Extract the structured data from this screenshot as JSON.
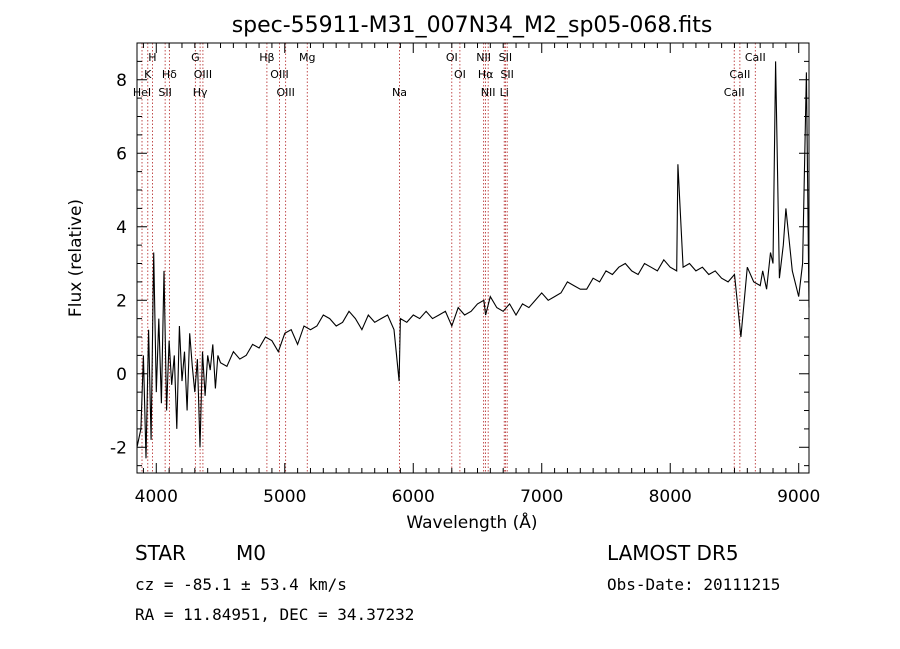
{
  "chart_data": {
    "type": "line",
    "title": "spec-55911-M31_007N34_M2_sp05-068.fits",
    "xlabel": "Wavelength (Å)",
    "ylabel": "Flux (relative)",
    "xlim": [
      3850,
      9080
    ],
    "ylim": [
      -2.7,
      9.0
    ],
    "x_ticks": [
      4000,
      5000,
      6000,
      7000,
      8000,
      9000
    ],
    "y_ticks": [
      -2,
      0,
      2,
      4,
      6,
      8
    ],
    "line_color": "#000000",
    "marker_line_color": "#b22222",
    "series": [
      {
        "x": [
          3850,
          3880,
          3900,
          3920,
          3940,
          3960,
          3980,
          4000,
          4020,
          4040,
          4060,
          4080,
          4100,
          4120,
          4140,
          4160,
          4180,
          4200,
          4220,
          4240,
          4260,
          4280,
          4300,
          4320,
          4340,
          4360,
          4380,
          4400,
          4420,
          4440,
          4460,
          4480,
          4500,
          4550,
          4600,
          4650,
          4700,
          4750,
          4800,
          4850,
          4900,
          4950,
          5000,
          5050,
          5100,
          5150,
          5200,
          5250,
          5300,
          5350,
          5400,
          5450,
          5500,
          5550,
          5600,
          5650,
          5700,
          5750,
          5800,
          5850,
          5890,
          5900,
          5950,
          6000,
          6050,
          6100,
          6150,
          6200,
          6250,
          6300,
          6350,
          6400,
          6450,
          6500,
          6550,
          6563,
          6600,
          6650,
          6700,
          6750,
          6800,
          6850,
          6900,
          6950,
          7000,
          7050,
          7100,
          7150,
          7200,
          7250,
          7300,
          7350,
          7400,
          7450,
          7500,
          7550,
          7600,
          7650,
          7700,
          7750,
          7800,
          7850,
          7900,
          7950,
          8000,
          8050,
          8060,
          8100,
          8150,
          8200,
          8250,
          8300,
          8350,
          8400,
          8450,
          8500,
          8550,
          8600,
          8650,
          8700,
          8720,
          8750,
          8780,
          8800,
          8820,
          8850,
          8880,
          8900,
          8950,
          9000,
          9030,
          9060,
          9080
        ],
        "y": [
          -2.0,
          -1.5,
          0.5,
          -2.3,
          1.2,
          -1.8,
          3.3,
          -0.5,
          1.5,
          -0.8,
          2.8,
          -1.0,
          0.9,
          -0.3,
          0.5,
          -1.5,
          1.3,
          -0.2,
          0.6,
          -1.0,
          1.1,
          0.2,
          -0.5,
          0.4,
          -2.0,
          0.6,
          -0.6,
          0.5,
          0.1,
          0.8,
          -0.4,
          0.5,
          0.3,
          0.2,
          0.6,
          0.4,
          0.5,
          0.8,
          0.7,
          1.0,
          0.9,
          0.6,
          1.1,
          1.2,
          0.8,
          1.3,
          1.2,
          1.3,
          1.6,
          1.5,
          1.3,
          1.4,
          1.7,
          1.5,
          1.2,
          1.6,
          1.4,
          1.5,
          1.6,
          1.2,
          -0.2,
          1.5,
          1.4,
          1.6,
          1.5,
          1.7,
          1.5,
          1.6,
          1.7,
          1.3,
          1.8,
          1.6,
          1.7,
          1.9,
          2.0,
          1.6,
          2.1,
          1.8,
          1.7,
          1.9,
          1.6,
          1.9,
          1.8,
          2.0,
          2.2,
          2.0,
          2.1,
          2.2,
          2.5,
          2.4,
          2.3,
          2.3,
          2.6,
          2.5,
          2.8,
          2.7,
          2.9,
          3.0,
          2.8,
          2.7,
          3.0,
          2.9,
          2.8,
          3.1,
          2.9,
          2.8,
          5.7,
          2.9,
          3.0,
          2.8,
          2.9,
          2.7,
          2.8,
          2.6,
          2.5,
          2.7,
          1.0,
          2.9,
          2.5,
          2.4,
          2.8,
          2.3,
          3.3,
          3.0,
          8.5,
          2.6,
          3.5,
          4.5,
          2.8,
          2.1,
          3.0,
          8.2,
          1.8
        ]
      }
    ],
    "spectral_lines": [
      {
        "name": "H",
        "x": 3970,
        "row": 0
      },
      {
        "name": "K",
        "x": 3934,
        "row": 1
      },
      {
        "name": "HeI",
        "x": 3889,
        "row": 2
      },
      {
        "name": "Hδ",
        "x": 4102,
        "row": 1
      },
      {
        "name": "SII",
        "x": 4069,
        "row": 2
      },
      {
        "name": "G",
        "x": 4304,
        "row": 0
      },
      {
        "name": "OIII",
        "x": 4363,
        "row": 1
      },
      {
        "name": "Hγ",
        "x": 4341,
        "row": 2
      },
      {
        "name": "Hβ",
        "x": 4861,
        "row": 0
      },
      {
        "name": "OIII",
        "x": 4959,
        "row": 1
      },
      {
        "name": "OIII",
        "x": 5007,
        "row": 2
      },
      {
        "name": "Mg",
        "x": 5175,
        "row": 0
      },
      {
        "name": "Na",
        "x": 5893,
        "row": 2
      },
      {
        "name": "OI",
        "x": 6300,
        "row": 0
      },
      {
        "name": "OI",
        "x": 6363,
        "row": 1
      },
      {
        "name": "NII",
        "x": 6548,
        "row": 0
      },
      {
        "name": "Hα",
        "x": 6563,
        "row": 1
      },
      {
        "name": "NII",
        "x": 6583,
        "row": 2
      },
      {
        "name": "SII",
        "x": 6717,
        "row": 0
      },
      {
        "name": "SII",
        "x": 6731,
        "row": 1
      },
      {
        "name": "Li",
        "x": 6708,
        "row": 2
      },
      {
        "name": "CaII",
        "x": 8662,
        "row": 0
      },
      {
        "name": "CaII",
        "x": 8542,
        "row": 1
      },
      {
        "name": "CaII",
        "x": 8498,
        "row": 2
      }
    ]
  },
  "info": {
    "class": "STAR",
    "subclass": "M0",
    "survey": "LAMOST DR5",
    "cz": "cz = -85.1 ± 53.4 km/s",
    "obs_date": "Obs-Date: 20111215",
    "coords": "RA =  11.84951, DEC =  34.37232"
  }
}
